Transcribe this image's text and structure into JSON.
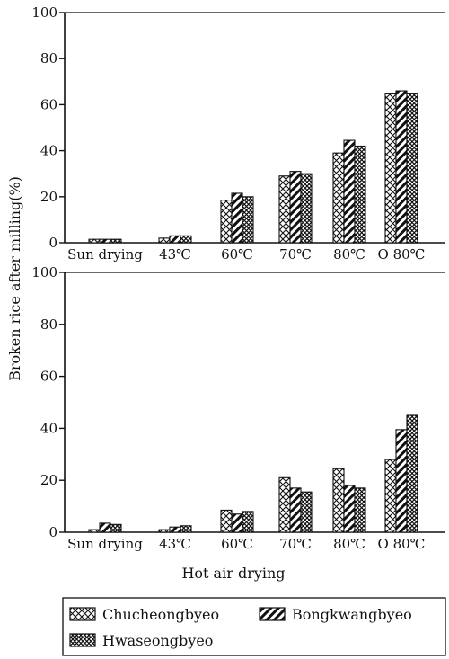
{
  "chart_data": [
    {
      "type": "bar",
      "categories": [
        "Sun drying",
        "43℃",
        "60℃",
        "70℃",
        "80℃",
        "O 80℃"
      ],
      "series": [
        {
          "name": "Chucheongbyeo",
          "values": [
            1.5,
            2,
            18.5,
            29,
            39,
            65
          ]
        },
        {
          "name": "Bongkwangbyeo",
          "values": [
            1.5,
            3,
            21.5,
            31,
            44.5,
            66
          ]
        },
        {
          "name": "Hwaseongbyeo",
          "values": [
            1.5,
            3,
            20,
            30,
            42,
            65
          ]
        }
      ],
      "ylim": [
        0,
        100
      ],
      "yticks": [
        0,
        20,
        40,
        60,
        80,
        100
      ]
    },
    {
      "type": "bar",
      "categories": [
        "Sun drying",
        "43℃",
        "60℃",
        "70℃",
        "80℃",
        "O 80℃"
      ],
      "series": [
        {
          "name": "Chucheongbyeo",
          "values": [
            1,
            1,
            8.5,
            21,
            24.5,
            28
          ]
        },
        {
          "name": "Bongkwangbyeo",
          "values": [
            3.5,
            2,
            7,
            17,
            18,
            39.5
          ]
        },
        {
          "name": "Hwaseongbyeo",
          "values": [
            3,
            2.5,
            8,
            15.5,
            17,
            45
          ]
        }
      ],
      "ylim": [
        0,
        100
      ],
      "yticks": [
        0,
        20,
        40,
        60,
        80,
        100
      ]
    }
  ],
  "ylabel": "Broken rice after milling(%)",
  "xlabel": "Hot air drying",
  "legend": [
    {
      "label": "Chucheongbyeo",
      "pattern": "crosshatch"
    },
    {
      "label": "Bongkwangbyeo",
      "pattern": "diagonal"
    },
    {
      "label": "Hwaseongbyeo",
      "pattern": "dense-crosshatch"
    }
  ]
}
